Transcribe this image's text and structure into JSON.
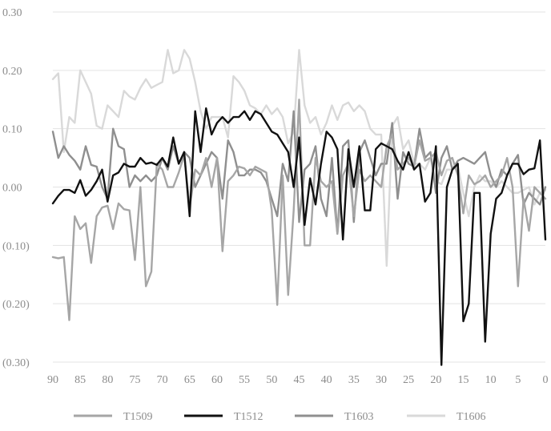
{
  "chart_data": {
    "type": "line",
    "title": "",
    "xlabel": "",
    "ylabel": "",
    "x_reversed": true,
    "xlim": [
      0,
      90
    ],
    "ylim": [
      -0.3,
      0.3
    ],
    "grid": "horizontal",
    "legend_position": "bottom",
    "x_ticks": [
      {
        "value": 90,
        "label": "90"
      },
      {
        "value": 85,
        "label": "85"
      },
      {
        "value": 80,
        "label": "80"
      },
      {
        "value": 75,
        "label": "75"
      },
      {
        "value": 70,
        "label": "70"
      },
      {
        "value": 65,
        "label": "65"
      },
      {
        "value": 60,
        "label": "60"
      },
      {
        "value": 55,
        "label": "55"
      },
      {
        "value": 50,
        "label": "50"
      },
      {
        "value": 45,
        "label": "45"
      },
      {
        "value": 40,
        "label": "40"
      },
      {
        "value": 35,
        "label": "35"
      },
      {
        "value": 30,
        "label": "30"
      },
      {
        "value": 25,
        "label": "25"
      },
      {
        "value": 20,
        "label": "20"
      },
      {
        "value": 15,
        "label": "15"
      },
      {
        "value": 10,
        "label": "10"
      },
      {
        "value": 5,
        "label": "5"
      },
      {
        "value": 0,
        "label": "0"
      }
    ],
    "y_ticks": [
      {
        "value": 0.3,
        "label": "0.30"
      },
      {
        "value": 0.2,
        "label": "0.20"
      },
      {
        "value": 0.1,
        "label": "0.10"
      },
      {
        "value": 0.0,
        "label": "0.00"
      },
      {
        "value": -0.1,
        "label": "(0.10)"
      },
      {
        "value": -0.2,
        "label": "(0.20)"
      },
      {
        "value": -0.3,
        "label": "(0.30)"
      }
    ],
    "series": [
      {
        "name": "T1509",
        "color": "#a6a6a6",
        "x": [
          90,
          89,
          88,
          87,
          86,
          85,
          84,
          83,
          82,
          81,
          80,
          79,
          78,
          77,
          76,
          75,
          74,
          73,
          72,
          71,
          70,
          69,
          68,
          67,
          66,
          65,
          64,
          63,
          62,
          61,
          60,
          59,
          58,
          57,
          56,
          55,
          54,
          53,
          52,
          51,
          50,
          49,
          48,
          47,
          46,
          45,
          44,
          43,
          42,
          41,
          40,
          39,
          38,
          37,
          36,
          35,
          34,
          33,
          32,
          31,
          30,
          29,
          28,
          27,
          26,
          25,
          24,
          23,
          22,
          21,
          20,
          19,
          18,
          17,
          16,
          15,
          14,
          13,
          12,
          11,
          10,
          9,
          8,
          7,
          6,
          5,
          4,
          3,
          2,
          1,
          0
        ],
        "values": [
          -0.12,
          -0.122,
          -0.12,
          -0.228,
          -0.05,
          -0.072,
          -0.062,
          -0.13,
          -0.05,
          -0.035,
          -0.032,
          -0.072,
          -0.028,
          -0.038,
          -0.04,
          -0.125,
          0.0,
          -0.17,
          -0.145,
          0.04,
          0.03,
          0.0,
          0.0,
          0.025,
          0.055,
          -0.035,
          0.03,
          0.02,
          0.05,
          0.0,
          0.05,
          -0.11,
          0.01,
          0.02,
          0.035,
          0.032,
          0.02,
          0.035,
          0.03,
          0.025,
          -0.04,
          -0.202,
          0.02,
          -0.185,
          -0.04,
          0.15,
          -0.1,
          -0.1,
          0.05,
          0.01,
          0.0,
          0.01,
          -0.08,
          0.02,
          0.04,
          -0.05,
          0.03,
          0.01,
          0.02,
          0.01,
          0.0,
          0.07,
          0.09,
          0.03,
          0.04,
          0.05,
          0.035,
          0.08,
          0.045,
          0.05,
          0.06,
          0.02,
          0.045,
          0.05,
          0.02,
          -0.045,
          0.02,
          0.005,
          0.01,
          0.02,
          0.0,
          0.01,
          0.02,
          0.05,
          0.0,
          -0.17,
          -0.02,
          -0.075,
          0.0,
          -0.01,
          -0.02
        ]
      },
      {
        "name": "T1512",
        "color": "#111111",
        "x": [
          90,
          89,
          88,
          87,
          86,
          85,
          84,
          83,
          82,
          81,
          80,
          79,
          78,
          77,
          76,
          75,
          74,
          73,
          72,
          71,
          70,
          69,
          68,
          67,
          66,
          65,
          64,
          63,
          62,
          61,
          60,
          59,
          58,
          57,
          56,
          55,
          54,
          53,
          52,
          51,
          50,
          49,
          48,
          47,
          46,
          45,
          44,
          43,
          42,
          41,
          40,
          39,
          38,
          37,
          36,
          35,
          34,
          33,
          32,
          31,
          30,
          29,
          28,
          27,
          26,
          25,
          24,
          23,
          22,
          21,
          20,
          19,
          18,
          17,
          16,
          15,
          14,
          13,
          12,
          11,
          10,
          9,
          8,
          7,
          6,
          5,
          4,
          3,
          2,
          1,
          0
        ],
        "values": [
          -0.028,
          -0.015,
          -0.005,
          -0.005,
          -0.01,
          0.012,
          -0.015,
          -0.005,
          0.01,
          0.03,
          -0.025,
          0.02,
          0.025,
          0.04,
          0.035,
          0.035,
          0.05,
          0.04,
          0.042,
          0.038,
          0.05,
          0.035,
          0.085,
          0.04,
          0.06,
          -0.05,
          0.13,
          0.06,
          0.135,
          0.09,
          0.11,
          0.12,
          0.11,
          0.12,
          0.12,
          0.13,
          0.115,
          0.13,
          0.125,
          0.11,
          0.095,
          0.09,
          0.075,
          0.06,
          0.0,
          0.085,
          -0.065,
          0.015,
          -0.03,
          0.04,
          0.095,
          0.085,
          0.065,
          -0.09,
          0.065,
          0.0,
          0.07,
          -0.04,
          -0.04,
          0.065,
          0.075,
          0.07,
          0.065,
          0.045,
          0.03,
          0.06,
          0.03,
          0.04,
          -0.025,
          -0.01,
          0.07,
          -0.305,
          0.0,
          0.03,
          0.04,
          -0.23,
          -0.2,
          -0.01,
          -0.01,
          -0.265,
          -0.08,
          -0.02,
          -0.01,
          0.02,
          0.04,
          0.04,
          0.022,
          0.03,
          0.032,
          0.08,
          -0.09
        ]
      },
      {
        "name": "T1603",
        "color": "#8f8f8f",
        "x": [
          90,
          89,
          88,
          87,
          86,
          85,
          84,
          83,
          82,
          81,
          80,
          79,
          78,
          77,
          76,
          75,
          74,
          73,
          72,
          71,
          70,
          69,
          68,
          67,
          66,
          65,
          64,
          63,
          62,
          61,
          60,
          59,
          58,
          57,
          56,
          55,
          54,
          53,
          52,
          51,
          50,
          49,
          48,
          47,
          46,
          45,
          44,
          43,
          42,
          41,
          40,
          39,
          38,
          37,
          36,
          35,
          34,
          33,
          32,
          31,
          30,
          29,
          28,
          27,
          26,
          25,
          24,
          23,
          22,
          21,
          20,
          19,
          18,
          17,
          16,
          15,
          14,
          13,
          12,
          11,
          10,
          9,
          8,
          7,
          6,
          5,
          4,
          3,
          2,
          1,
          0
        ],
        "values": [
          0.095,
          0.05,
          0.07,
          0.055,
          0.045,
          0.03,
          0.07,
          0.038,
          0.035,
          0.0,
          -0.02,
          0.1,
          0.07,
          0.065,
          0.0,
          0.02,
          0.01,
          0.02,
          0.01,
          0.02,
          0.05,
          0.03,
          0.07,
          0.04,
          0.06,
          0.05,
          0.0,
          0.02,
          0.04,
          0.06,
          0.05,
          -0.02,
          0.08,
          0.06,
          0.02,
          0.02,
          0.03,
          0.03,
          0.025,
          0.01,
          -0.02,
          -0.05,
          0.04,
          0.01,
          0.13,
          -0.06,
          0.03,
          0.04,
          0.07,
          -0.02,
          -0.05,
          0.05,
          -0.08,
          0.07,
          0.08,
          -0.06,
          0.06,
          0.08,
          0.05,
          0.02,
          0.04,
          0.04,
          0.11,
          -0.02,
          0.06,
          0.04,
          0.035,
          0.1,
          0.05,
          0.06,
          -0.01,
          0.05,
          0.07,
          0.03,
          0.045,
          0.05,
          0.045,
          0.04,
          0.05,
          0.06,
          0.02,
          0.0,
          0.03,
          0.02,
          0.04,
          0.055,
          -0.03,
          -0.01,
          -0.02,
          -0.03,
          0.0
        ]
      },
      {
        "name": "T1606",
        "color": "#d9d9d9",
        "x": [
          90,
          89,
          88,
          87,
          86,
          85,
          84,
          83,
          82,
          81,
          80,
          79,
          78,
          77,
          76,
          75,
          74,
          73,
          72,
          71,
          70,
          69,
          68,
          67,
          66,
          65,
          64,
          63,
          62,
          61,
          60,
          59,
          58,
          57,
          56,
          55,
          54,
          53,
          52,
          51,
          50,
          49,
          48,
          47,
          46,
          45,
          44,
          43,
          42,
          41,
          40,
          39,
          38,
          37,
          36,
          35,
          34,
          33,
          32,
          31,
          30,
          29,
          28,
          27,
          26,
          25,
          24,
          23,
          22,
          21,
          20,
          19,
          18,
          17,
          16,
          15,
          14,
          13,
          12,
          11,
          10,
          9,
          8,
          7,
          6,
          5,
          4,
          3,
          2,
          1,
          0
        ],
        "values": [
          0.185,
          0.195,
          0.06,
          0.12,
          0.11,
          0.2,
          0.18,
          0.16,
          0.105,
          0.1,
          0.14,
          0.13,
          0.12,
          0.165,
          0.155,
          0.15,
          0.17,
          0.185,
          0.17,
          0.175,
          0.18,
          0.235,
          0.195,
          0.2,
          0.235,
          0.22,
          0.18,
          0.13,
          0.1,
          0.12,
          0.12,
          0.12,
          0.085,
          0.19,
          0.18,
          0.165,
          0.14,
          0.135,
          0.125,
          0.14,
          0.125,
          0.135,
          0.12,
          0.075,
          0.095,
          0.235,
          0.14,
          0.11,
          0.12,
          0.09,
          0.11,
          0.14,
          0.115,
          0.14,
          0.145,
          0.13,
          0.14,
          0.13,
          0.1,
          0.09,
          0.09,
          -0.135,
          0.105,
          0.12,
          0.065,
          0.08,
          0.04,
          0.04,
          0.03,
          0.05,
          0.01,
          0.005,
          0.03,
          0.03,
          0.035,
          -0.01,
          -0.05,
          0.0,
          0.02,
          0.01,
          0.01,
          0.0,
          0.01,
          0.0,
          -0.01,
          -0.01,
          -0.005,
          0.0,
          -0.03,
          -0.01,
          -0.005
        ]
      }
    ]
  }
}
